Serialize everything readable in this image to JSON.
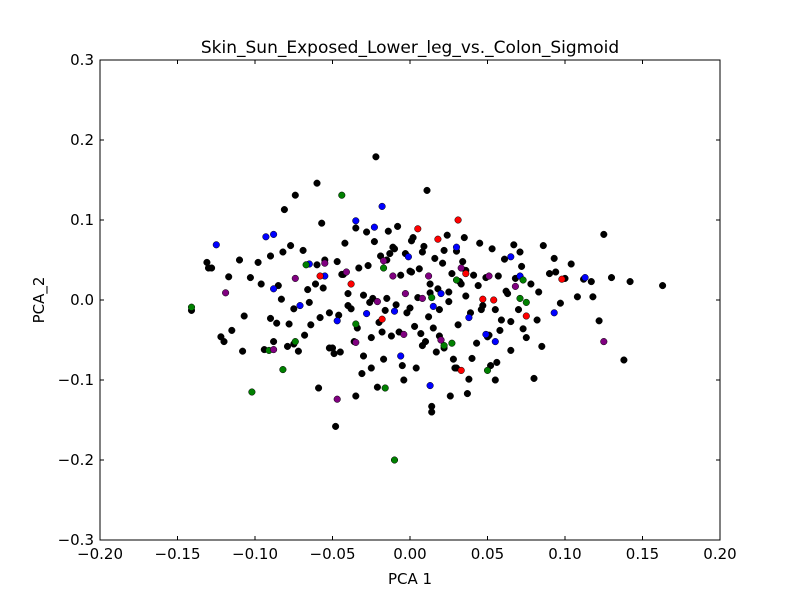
{
  "chart_data": {
    "type": "scatter",
    "title": "Skin_Sun_Exposed_Lower_leg_vs._Colon_Sigmoid",
    "xlabel": "PCA 1",
    "ylabel": "PCA_2",
    "xlim": [
      -0.2,
      0.2
    ],
    "ylim": [
      -0.3,
      0.3
    ],
    "xticks": [
      -0.2,
      -0.15,
      -0.1,
      -0.05,
      0.0,
      0.05,
      0.1,
      0.15,
      0.2
    ],
    "yticks": [
      -0.3,
      -0.2,
      -0.1,
      0.0,
      0.1,
      0.2,
      0.3
    ],
    "xtick_labels": [
      "−0.20",
      "−0.15",
      "−0.10",
      "−0.05",
      "0.00",
      "0.05",
      "0.10",
      "0.15",
      "0.20"
    ],
    "ytick_labels": [
      "−0.3",
      "−0.2",
      "−0.1",
      "0.0",
      "0.1",
      "0.2",
      "0.3"
    ],
    "grid": false,
    "colors": {
      "black": "#000000",
      "blue": "#0000ff",
      "red": "#ff0000",
      "green": "#008000",
      "purple": "#800080"
    },
    "series": [
      {
        "color": "#000000",
        "x": [
          -0.141,
          -0.131,
          -0.128,
          -0.122,
          -0.117,
          -0.11,
          -0.108,
          -0.103,
          -0.096,
          -0.094,
          -0.09,
          -0.088,
          -0.086,
          -0.083,
          -0.081,
          -0.079,
          -0.077,
          -0.074,
          -0.072,
          -0.069,
          -0.066,
          -0.064,
          -0.061,
          -0.06,
          -0.058,
          -0.057,
          -0.055,
          -0.052,
          -0.049,
          -0.047,
          -0.046,
          -0.044,
          -0.042,
          -0.04,
          -0.038,
          -0.036,
          -0.035,
          -0.033,
          -0.031,
          -0.03,
          -0.028,
          -0.026,
          -0.025,
          -0.023,
          -0.022,
          -0.02,
          -0.019,
          -0.017,
          -0.015,
          -0.014,
          -0.012,
          -0.011,
          -0.009,
          -0.008,
          -0.006,
          -0.005,
          -0.003,
          -0.002,
          0.0,
          0.001,
          0.003,
          0.005,
          0.006,
          0.008,
          0.009,
          0.011,
          0.012,
          0.013,
          0.015,
          0.016,
          0.018,
          0.019,
          0.021,
          0.022,
          0.024,
          0.025,
          0.027,
          0.028,
          0.03,
          0.031,
          0.033,
          0.034,
          0.036,
          0.038,
          0.039,
          0.041,
          0.043,
          0.045,
          0.047,
          0.049,
          0.051,
          0.053,
          0.055,
          0.057,
          0.059,
          0.061,
          0.063,
          0.065,
          0.068,
          0.07,
          0.072,
          0.075,
          0.078,
          0.08,
          0.083,
          0.086,
          0.09,
          0.093,
          0.097,
          0.1,
          0.104,
          0.108,
          0.112,
          0.117,
          0.122,
          0.125,
          0.13,
          0.138,
          0.142,
          0.163,
          -0.13,
          -0.12,
          -0.107,
          -0.098,
          -0.082,
          -0.075,
          -0.068,
          -0.056,
          -0.05,
          -0.043,
          -0.035,
          -0.027,
          -0.021,
          -0.016,
          -0.01,
          -0.004,
          0.002,
          0.007,
          0.014,
          0.02,
          0.026,
          0.032,
          0.037,
          0.044,
          0.05,
          0.056,
          0.062,
          0.067,
          0.073,
          0.085,
          0.094,
          -0.09,
          -0.059,
          -0.03,
          -0.018,
          0.013,
          0.029,
          -0.045,
          0.01,
          0.04,
          0.065,
          -0.065,
          -0.034,
          0.004,
          0.019,
          0.052,
          0.082,
          -0.115,
          -0.078,
          -0.052,
          -0.024,
          0.001,
          0.025,
          0.046,
          0.071,
          0.118,
          -0.075,
          -0.04,
          -0.013,
          0.017,
          0.035,
          0.058,
          -0.06,
          -0.025,
          0.008,
          0.036,
          0.055,
          -0.085,
          -0.007,
          0.022,
          -0.048,
          0.0,
          0.03,
          -0.015,
          0.014
        ],
        "y": [
          -0.013,
          0.047,
          0.04,
          -0.046,
          0.029,
          0.05,
          -0.064,
          0.028,
          0.02,
          -0.062,
          0.055,
          -0.052,
          -0.029,
          0.001,
          0.113,
          -0.058,
          0.068,
          0.131,
          -0.064,
          0.062,
          0.013,
          -0.031,
          0.02,
          0.146,
          -0.022,
          0.096,
          0.05,
          -0.016,
          -0.067,
          0.048,
          -0.019,
          0.032,
          0.071,
          -0.007,
          -0.011,
          -0.052,
          0.09,
          0.04,
          -0.092,
          0.006,
          0.085,
          -0.003,
          -0.047,
          0.073,
          0.179,
          -0.028,
          0.055,
          -0.074,
          0.002,
          0.086,
          -0.045,
          0.066,
          -0.006,
          0.092,
          0.031,
          -0.082,
          0.058,
          -0.016,
          0.036,
          0.074,
          -0.033,
          0.003,
          0.039,
          -0.057,
          0.067,
          0.137,
          -0.021,
          0.009,
          -0.035,
          0.052,
          0.014,
          -0.012,
          0.046,
          -0.06,
          0.081,
          -0.002,
          0.033,
          -0.074,
          0.061,
          -0.031,
          0.02,
          0.048,
          0.005,
          -0.099,
          -0.016,
          0.031,
          -0.054,
          0.071,
          -0.007,
          0.028,
          -0.044,
          0.064,
          -0.012,
          0.03,
          -0.025,
          0.051,
          0.008,
          -0.063,
          0.027,
          -0.012,
          0.042,
          -0.047,
          0.02,
          -0.098,
          0.01,
          0.068,
          0.033,
          0.052,
          -0.004,
          0.027,
          0.045,
          0.004,
          0.026,
          0.023,
          -0.026,
          0.082,
          0.028,
          -0.075,
          0.023,
          0.018,
          0.04,
          -0.052,
          -0.02,
          0.047,
          0.06,
          -0.011,
          -0.044,
          0.015,
          -0.06,
          0.032,
          -0.12,
          0.043,
          -0.109,
          -0.013,
          0.064,
          -0.1,
          0.078,
          -0.042,
          -0.133,
          -0.05,
          -0.12,
          0.023,
          -0.117,
          0.018,
          -0.046,
          -0.078,
          0.011,
          0.069,
          -0.036,
          -0.058,
          0.035,
          -0.023,
          -0.11,
          -0.07,
          -0.04,
          0.02,
          -0.085,
          -0.065,
          -0.052,
          -0.073,
          -0.027,
          -0.003,
          -0.035,
          -0.085,
          -0.045,
          -0.082,
          -0.025,
          -0.038,
          -0.03,
          -0.06,
          0.002,
          0.035,
          0.01,
          -0.012,
          0.06,
          0.004,
          -0.055,
          0.008,
          0.058,
          -0.065,
          0.078,
          -0.038,
          0.044,
          -0.085,
          0.06,
          0.037,
          -0.1,
          0.018,
          -0.04,
          0.062,
          -0.158,
          -0.01,
          -0.085,
          0.05,
          -0.14
        ],
        "size": 5
      },
      {
        "color": "#0000ff",
        "x": [
          -0.125,
          -0.093,
          -0.088,
          -0.088,
          -0.071,
          -0.065,
          -0.055,
          -0.047,
          -0.035,
          -0.028,
          -0.023,
          -0.018,
          -0.01,
          -0.006,
          -0.001,
          0.013,
          0.015,
          0.02,
          0.03,
          0.038,
          0.049,
          0.055,
          0.065,
          0.071,
          0.093,
          0.113
        ],
        "y": [
          0.069,
          0.079,
          0.082,
          0.014,
          -0.007,
          0.045,
          0.03,
          -0.026,
          0.099,
          -0.017,
          0.091,
          0.117,
          -0.014,
          -0.07,
          0.054,
          -0.107,
          -0.008,
          0.008,
          0.066,
          -0.022,
          -0.043,
          -0.052,
          0.054,
          0.03,
          -0.016,
          0.028
        ],
        "size": 5
      },
      {
        "color": "#ff0000",
        "x": [
          -0.058,
          -0.038,
          -0.018,
          0.005,
          0.018,
          0.031,
          0.033,
          0.036,
          0.047,
          0.054,
          0.075,
          0.098
        ],
        "y": [
          0.03,
          0.02,
          -0.024,
          0.089,
          0.076,
          0.1,
          -0.088,
          0.033,
          0.001,
          0.0,
          -0.02,
          0.026
        ],
        "size": 5
      },
      {
        "color": "#008000",
        "x": [
          -0.141,
          -0.102,
          -0.091,
          -0.082,
          -0.074,
          -0.067,
          -0.044,
          -0.035,
          -0.017,
          -0.016,
          -0.01,
          0.014,
          0.022,
          0.027,
          0.03,
          0.05,
          0.071,
          0.073,
          0.075
        ],
        "y": [
          -0.009,
          -0.115,
          -0.063,
          -0.087,
          -0.052,
          0.044,
          0.131,
          -0.03,
          0.04,
          -0.11,
          -0.2,
          0.003,
          -0.057,
          -0.054,
          0.025,
          -0.088,
          0.002,
          0.025,
          -0.003
        ],
        "size": 5
      },
      {
        "color": "#800080",
        "x": [
          -0.119,
          -0.088,
          -0.074,
          -0.055,
          -0.047,
          -0.041,
          -0.035,
          -0.021,
          -0.017,
          -0.011,
          -0.004,
          -0.003,
          0.008,
          0.012,
          0.02,
          0.033,
          0.051,
          0.068,
          0.125
        ],
        "y": [
          0.009,
          -0.062,
          0.027,
          0.046,
          -0.124,
          0.035,
          -0.053,
          -0.002,
          0.049,
          0.03,
          -0.043,
          0.008,
          0.002,
          0.03,
          -0.05,
          0.04,
          0.03,
          0.017,
          -0.052
        ],
        "size": 5
      }
    ]
  }
}
